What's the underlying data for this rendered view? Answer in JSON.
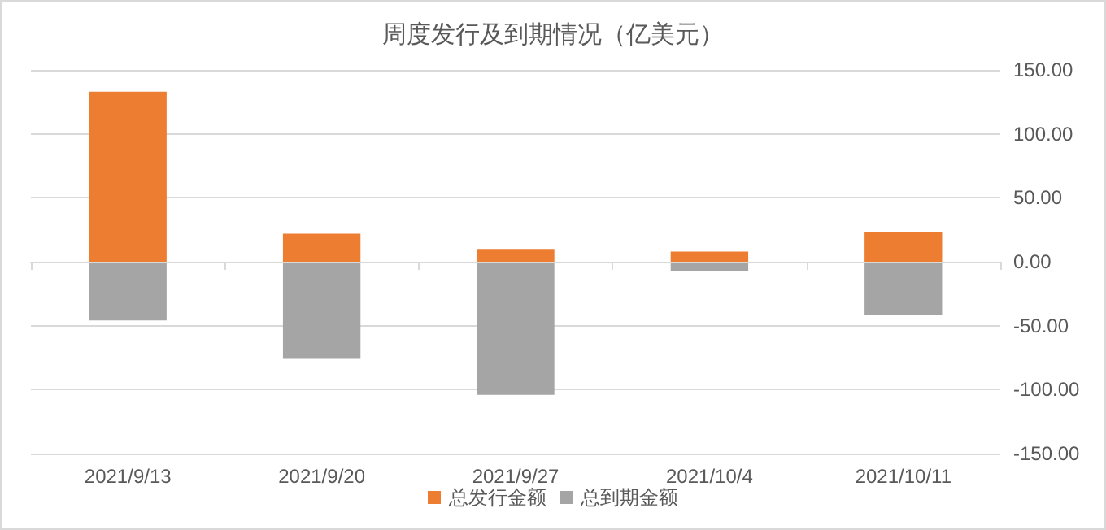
{
  "chart_data": {
    "type": "bar",
    "title": "周度发行及到期情况（亿美元）",
    "stacked": true,
    "categories": [
      "2021/9/13",
      "2021/9/20",
      "2021/9/27",
      "2021/10/4",
      "2021/10/11"
    ],
    "series": [
      {
        "name": "总发行金额",
        "color": "#ed7d31",
        "values": [
          133,
          22,
          10,
          8,
          23
        ]
      },
      {
        "name": "总到期金额",
        "color": "#a5a5a5",
        "values": [
          -46,
          -76,
          -104,
          -7,
          -42
        ]
      }
    ],
    "ylim": [
      -150,
      150
    ],
    "yticks": [
      {
        "value": -150,
        "label": "-150.00"
      },
      {
        "value": -100,
        "label": "-100.00"
      },
      {
        "value": -50,
        "label": "-50.00"
      },
      {
        "value": 0,
        "label": "0.00"
      },
      {
        "value": 50,
        "label": "50.00"
      },
      {
        "value": 100,
        "label": "100.00"
      },
      {
        "value": 150,
        "label": "150.00"
      }
    ],
    "grid": "y",
    "legend": "bottom"
  }
}
